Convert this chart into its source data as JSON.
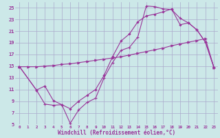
{
  "xlabel": "Windchill (Refroidissement éolien,°C)",
  "bg_color": "#cce8e8",
  "grid_color": "#aaaacc",
  "line_color": "#993399",
  "xlim": [
    -0.5,
    23.5
  ],
  "ylim": [
    5,
    26
  ],
  "yticks": [
    5,
    7,
    9,
    11,
    13,
    15,
    17,
    19,
    21,
    23,
    25
  ],
  "xticks": [
    0,
    1,
    2,
    3,
    4,
    5,
    6,
    7,
    8,
    9,
    10,
    11,
    12,
    13,
    14,
    15,
    16,
    17,
    18,
    19,
    20,
    21,
    22,
    23
  ],
  "line1_x": [
    0,
    1,
    2,
    3,
    4,
    5,
    6,
    7,
    8,
    9,
    10,
    11,
    12,
    13,
    14,
    15,
    16,
    17,
    18,
    19,
    20,
    21,
    22,
    23
  ],
  "line1_y": [
    14.9,
    14.9,
    14.9,
    15.0,
    15.1,
    15.3,
    15.4,
    15.6,
    15.8,
    16.0,
    16.2,
    16.4,
    16.6,
    16.9,
    17.2,
    17.5,
    17.8,
    18.1,
    18.5,
    18.8,
    19.1,
    19.4,
    19.7,
    14.8
  ],
  "line2_x": [
    0,
    2,
    3,
    4,
    5,
    6,
    7,
    8,
    9,
    10,
    11,
    12,
    13,
    14,
    15,
    16,
    17,
    18,
    19,
    20,
    21,
    22,
    23
  ],
  "line2_y": [
    14.9,
    10.9,
    8.5,
    8.3,
    8.4,
    5.2,
    7.5,
    8.8,
    9.5,
    13.0,
    15.6,
    17.7,
    18.2,
    20.0,
    25.3,
    25.2,
    24.8,
    24.7,
    23.2,
    22.4,
    21.2,
    19.1,
    14.8
  ],
  "line3_x": [
    0,
    2,
    3,
    4,
    5,
    6,
    7,
    8,
    9,
    10,
    11,
    12,
    13,
    14,
    15,
    16,
    17,
    18,
    19,
    20,
    21,
    22,
    23
  ],
  "line3_y": [
    14.9,
    10.9,
    11.6,
    9.1,
    8.4,
    7.7,
    9.0,
    10.0,
    11.0,
    13.4,
    16.6,
    19.3,
    20.5,
    22.6,
    23.6,
    23.9,
    24.3,
    24.8,
    22.1,
    22.4,
    21.2,
    19.1,
    14.8
  ]
}
